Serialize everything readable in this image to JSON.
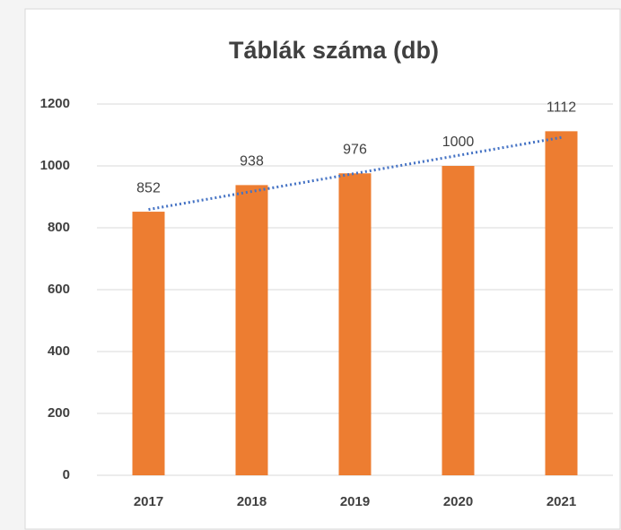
{
  "chart_data": {
    "type": "bar",
    "title": "Táblák száma (db)",
    "categories": [
      "2017",
      "2018",
      "2019",
      "2020",
      "2021"
    ],
    "values": [
      852,
      938,
      976,
      1000,
      1112
    ],
    "color": "#ed7d31",
    "ylim": [
      0,
      1200
    ],
    "yticks": [
      0,
      200,
      400,
      600,
      800,
      1000,
      1200
    ],
    "grid": true,
    "data_labels": true,
    "trendline": {
      "kind": "linear",
      "color": "#4472c4",
      "style": "dotted"
    }
  }
}
